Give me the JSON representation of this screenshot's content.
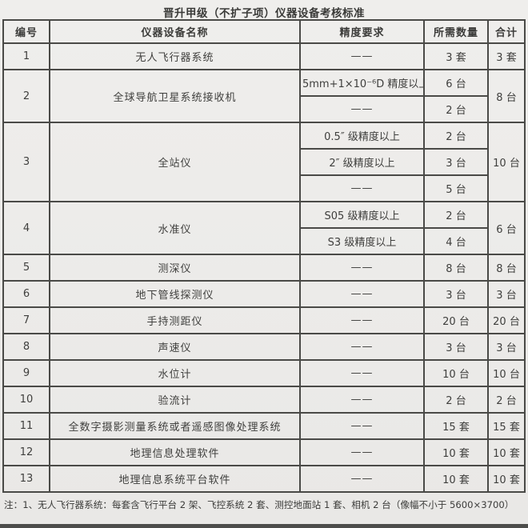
{
  "title": "晋升甲级（不扩子项）仪器设备考核标准",
  "table": {
    "headers": [
      "编号",
      "仪器设备名称",
      "精度要求",
      "所需数量",
      "合计"
    ],
    "rows": [
      {
        "id": "1",
        "name": "无人飞行器系统",
        "subrows": [
          {
            "precision": "——",
            "quantity": "3 套"
          }
        ],
        "total": "3 套"
      },
      {
        "id": "2",
        "name": "全球导航卫星系统接收机",
        "subrows": [
          {
            "precision": "5mm+1×10⁻⁶D 精度以上",
            "quantity": "6 台"
          },
          {
            "precision": "——",
            "quantity": "2 台"
          }
        ],
        "total": "8 台"
      },
      {
        "id": "3",
        "name": "全站仪",
        "subrows": [
          {
            "precision": "0.5″ 级精度以上",
            "quantity": "2 台"
          },
          {
            "precision": "2″ 级精度以上",
            "quantity": "3 台"
          },
          {
            "precision": "——",
            "quantity": "5 台"
          }
        ],
        "total": "10 台"
      },
      {
        "id": "4",
        "name": "水准仪",
        "subrows": [
          {
            "precision": "S05 级精度以上",
            "quantity": "2 台"
          },
          {
            "precision": "S3 级精度以上",
            "quantity": "4 台"
          }
        ],
        "total": "6 台"
      },
      {
        "id": "5",
        "name": "测深仪",
        "subrows": [
          {
            "precision": "——",
            "quantity": "8 台"
          }
        ],
        "total": "8 台"
      },
      {
        "id": "6",
        "name": "地下管线探测仪",
        "subrows": [
          {
            "precision": "——",
            "quantity": "3 台"
          }
        ],
        "total": "3 台"
      },
      {
        "id": "7",
        "name": "手持测距仪",
        "subrows": [
          {
            "precision": "——",
            "quantity": "20 台"
          }
        ],
        "total": "20 台"
      },
      {
        "id": "8",
        "name": "声速仪",
        "subrows": [
          {
            "precision": "——",
            "quantity": "3 台"
          }
        ],
        "total": "3 台"
      },
      {
        "id": "9",
        "name": "水位计",
        "subrows": [
          {
            "precision": "——",
            "quantity": "10 台"
          }
        ],
        "total": "10 台"
      },
      {
        "id": "10",
        "name": "验流计",
        "subrows": [
          {
            "precision": "——",
            "quantity": "2 台"
          }
        ],
        "total": "2 台"
      },
      {
        "id": "11",
        "name": "全数字摄影测量系统或者遥感图像处理系统",
        "subrows": [
          {
            "precision": "——",
            "quantity": "15 套"
          }
        ],
        "total": "15 套"
      },
      {
        "id": "12",
        "name": "地理信息处理软件",
        "subrows": [
          {
            "precision": "——",
            "quantity": "10 套"
          }
        ],
        "total": "10 套"
      },
      {
        "id": "13",
        "name": "地理信息系统平台软件",
        "subrows": [
          {
            "precision": "——",
            "quantity": "10 套"
          }
        ],
        "total": "10 套"
      }
    ]
  },
  "note": "注：1、无人飞行器系统：每套含飞行平台 2 架、飞控系统 2 套、测控地面站 1 套、相机 2 台（像幅不小于 5600×3700）",
  "colors": {
    "border": "#4a4a47",
    "text": "#3f3f3d",
    "background": "#ecebe9",
    "scan_edge": "#4d4d4b"
  }
}
